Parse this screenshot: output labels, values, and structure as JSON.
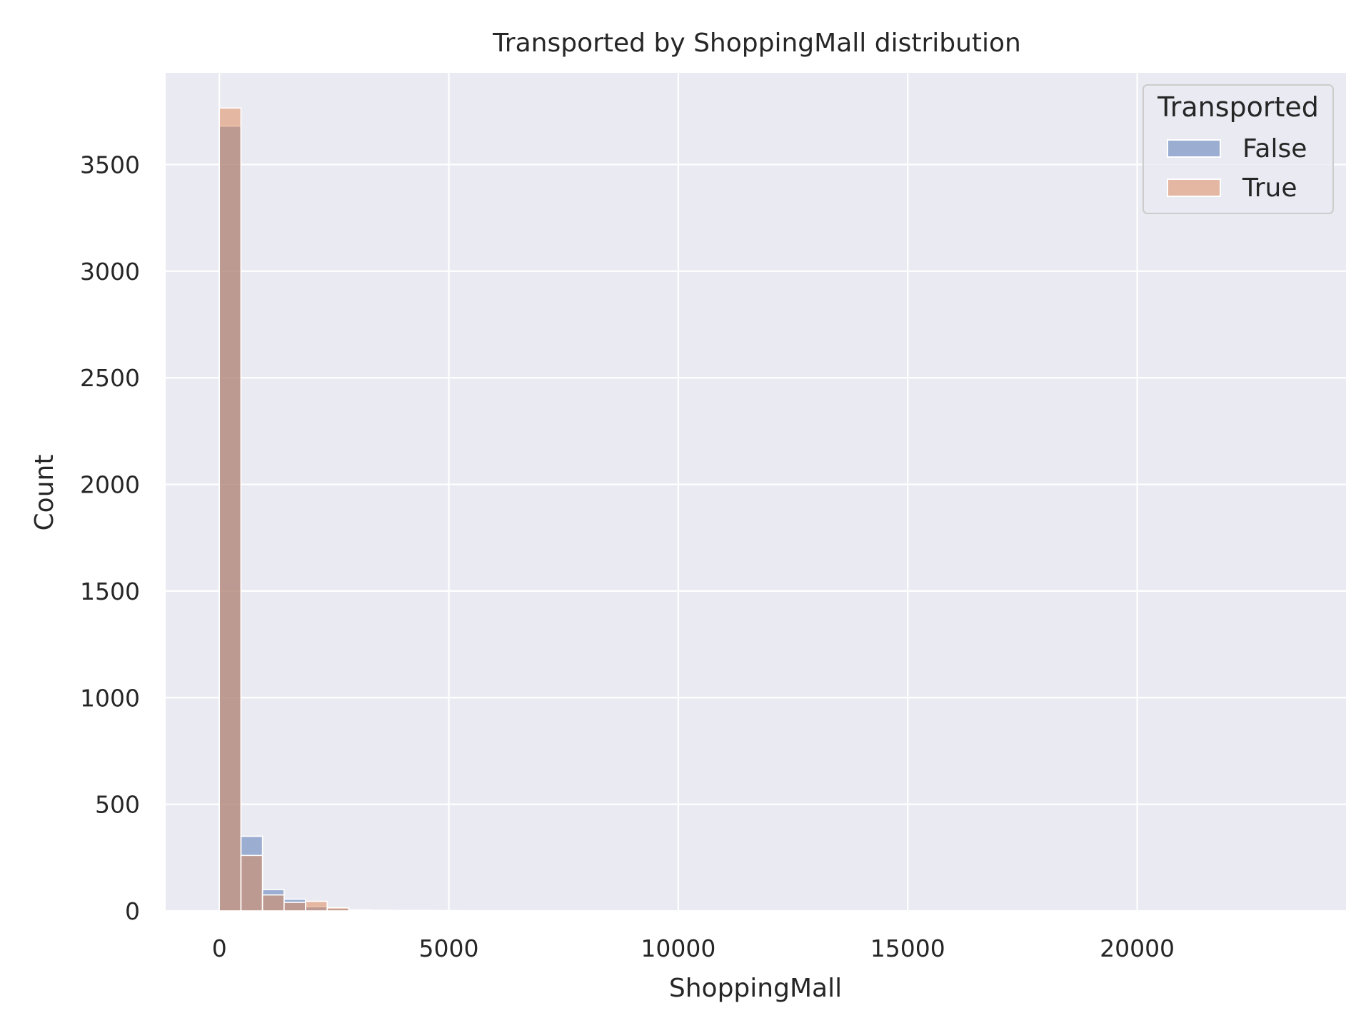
{
  "chart_data": {
    "type": "histogram",
    "title": "Transported by ShoppingMall distribution",
    "xlabel": "ShoppingMall",
    "ylabel": "Count",
    "xlim": [
      -1170,
      24550
    ],
    "ylim": [
      0,
      3930
    ],
    "xticks": [
      0,
      5000,
      10000,
      15000,
      20000
    ],
    "xtick_labels": [
      "0",
      "5000",
      "10000",
      "15000",
      "20000"
    ],
    "yticks": [
      0,
      500,
      1000,
      1500,
      2000,
      2500,
      3000,
      3500
    ],
    "ytick_labels": [
      "0",
      "500",
      "1000",
      "1500",
      "2000",
      "2500",
      "3000",
      "3500"
    ],
    "grid": true,
    "bin_width": 470,
    "bin_edges": [
      0,
      470,
      940,
      1410,
      1880,
      2350,
      2820,
      3290,
      3760,
      4230,
      4700,
      5170
    ],
    "legend": {
      "title": "Transported",
      "placement": "top-right"
    },
    "series": [
      {
        "name": "False",
        "color": "#4c72b0",
        "values": [
          3680,
          350,
          100,
          55,
          20,
          12,
          4,
          3,
          2,
          2,
          1
        ]
      },
      {
        "name": "True",
        "color": "#dd8452",
        "values": [
          3765,
          260,
          75,
          40,
          45,
          15,
          5,
          3,
          2,
          1,
          1
        ]
      }
    ]
  }
}
